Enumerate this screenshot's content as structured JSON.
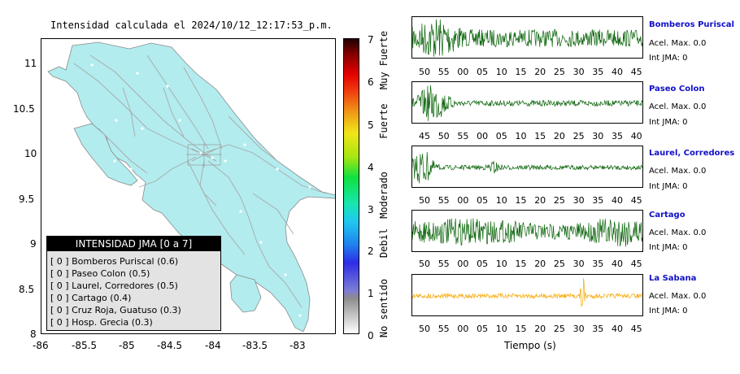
{
  "map": {
    "title": "Intensidad calculada el 2024/10/12_12:17:53_p.m.",
    "y_ticks": [
      "11",
      "10.5",
      "10",
      "9.5",
      "9",
      "8.5",
      "8"
    ],
    "x_ticks": [
      "-86",
      "-85.5",
      "-85",
      "-84.5",
      "-84",
      "-83.5",
      "-83"
    ],
    "land_color": "#b2ecee",
    "road_color": "#a9a9a9"
  },
  "legend": {
    "title": "INTENSIDAD JMA [0 a 7]",
    "items": [
      {
        "label": "[ 0 ]  Bomberos Puriscal (0.6)"
      },
      {
        "label": "[ 0 ]  Paseo Colon (0.5)"
      },
      {
        "label": "[ 0 ]  Laurel, Corredores (0.5)"
      },
      {
        "label": "[ 0 ]  Cartago (0.4)"
      },
      {
        "label": "[ 0 ]  Cruz Roja, Guatuso (0.3)"
      },
      {
        "label": "[ 0 ]  Hosp. Grecia (0.3)"
      }
    ]
  },
  "colorbar": {
    "ticks": [
      "7",
      "6",
      "5",
      "4",
      "3",
      "2",
      "1",
      "0"
    ],
    "categories": [
      "Muy Fuerte",
      "Fuerte",
      "Moderado",
      "Debil",
      "No sentido"
    ]
  },
  "stations": [
    {
      "name": "Bomberos Puriscal",
      "accel_label": "Acel. Max. 0.0",
      "int_label": "Int JMA: 0",
      "trace_color": "#0a640a",
      "ticks": [
        "50",
        "55",
        "00",
        "05",
        "10",
        "15",
        "20",
        "25",
        "30",
        "35",
        "40",
        "45"
      ]
    },
    {
      "name": "Paseo Colon",
      "accel_label": "Acel. Max. 0.0",
      "int_label": "Int JMA: 0",
      "trace_color": "#0a640a",
      "ticks": [
        "45",
        "50",
        "55",
        "00",
        "05",
        "10",
        "15",
        "20",
        "25",
        "30",
        "35",
        "40"
      ]
    },
    {
      "name": "Laurel, Corredores",
      "accel_label": "Acel. Max. 0.0",
      "int_label": "Int JMA: 0",
      "trace_color": "#0a640a",
      "ticks": [
        "50",
        "55",
        "00",
        "05",
        "10",
        "15",
        "20",
        "25",
        "30",
        "35",
        "40",
        "45"
      ]
    },
    {
      "name": "Cartago",
      "accel_label": "Acel. Max. 0.0",
      "int_label": "Int JMA: 0",
      "trace_color": "#0a640a",
      "ticks": [
        "50",
        "55",
        "00",
        "05",
        "10",
        "15",
        "20",
        "25",
        "30",
        "35",
        "40",
        "45"
      ]
    },
    {
      "name": "La Sabana",
      "accel_label": "Acel. Max. 0.0",
      "int_label": "Int JMA: 0",
      "trace_color": "#f5a800",
      "ticks": [
        "50",
        "55",
        "00",
        "05",
        "10",
        "15",
        "20",
        "25",
        "30",
        "35",
        "40",
        "45"
      ]
    }
  ],
  "xlabel": "Tiempo (s)"
}
